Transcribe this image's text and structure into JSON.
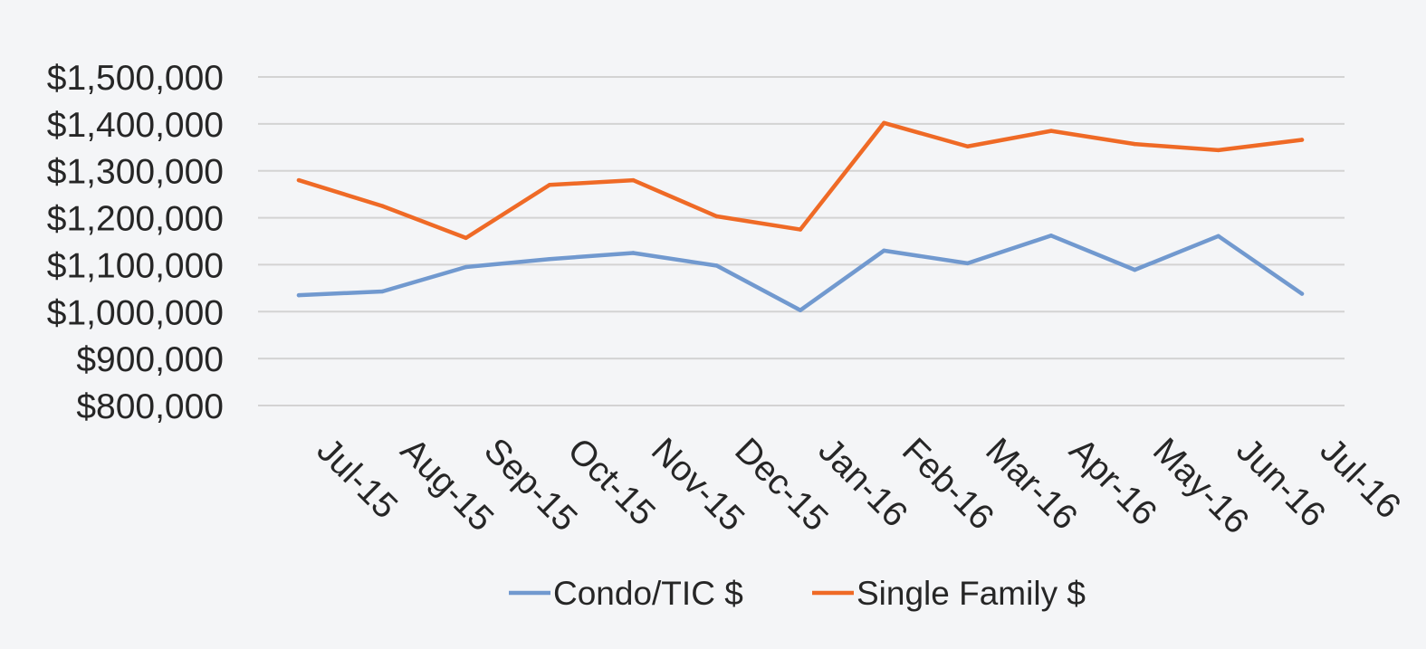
{
  "colors": {
    "background": "#f4f5f7",
    "grid": "#d3d3d3",
    "text": "#262626"
  },
  "chart_data": {
    "type": "line",
    "title": "",
    "xlabel": "",
    "ylabel": "",
    "grid": true,
    "legend_position": "bottom",
    "x": [
      "Jul-15",
      "Aug-15",
      "Sep-15",
      "Oct-15",
      "Nov-15",
      "Dec-15",
      "Jan-16",
      "Feb-16",
      "Mar-16",
      "Apr-16",
      "May-16",
      "Jun-16",
      "Jul-16"
    ],
    "ylim": [
      800000,
      1500000
    ],
    "yticks": [
      800000,
      900000,
      1000000,
      1100000,
      1200000,
      1300000,
      1400000,
      1500000
    ],
    "ytick_labels": [
      "$800,000",
      "$900,000",
      "$1,000,000",
      "$1,100,000",
      "$1,200,000",
      "$1,300,000",
      "$1,400,000",
      "$1,500,000"
    ],
    "series": [
      {
        "name": "Condo/TIC $",
        "color": "#7199cf",
        "values": [
          1035000,
          1043000,
          1095000,
          1112000,
          1125000,
          1098000,
          1003000,
          1130000,
          1103000,
          1162000,
          1089000,
          1161000,
          1038000
        ]
      },
      {
        "name": "Single Family $",
        "color": "#ef6a26",
        "values": [
          1280000,
          1225000,
          1157000,
          1270000,
          1280000,
          1203000,
          1175000,
          1402000,
          1352000,
          1385000,
          1357000,
          1344000,
          1366000
        ]
      }
    ]
  }
}
